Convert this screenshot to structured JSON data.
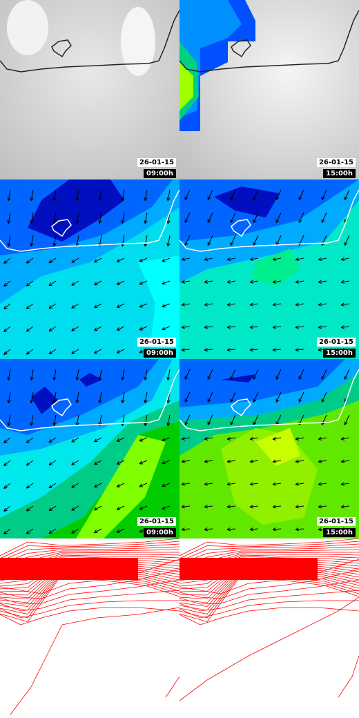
{
  "rows": [
    {
      "left": {
        "date": "26-01-15",
        "time": "09:00h"
      },
      "right": {
        "date": "26-01-15",
        "time": "15:00h"
      }
    },
    {
      "left": {
        "date": "26-01-15",
        "time": "09:00h"
      },
      "right": {
        "date": "26-01-15",
        "time": "15:00h"
      }
    },
    {
      "left": {
        "date": "26-01-15",
        "time": "09:00h"
      },
      "right": {
        "date": "26-01-15",
        "time": "15:00h"
      }
    }
  ]
}
